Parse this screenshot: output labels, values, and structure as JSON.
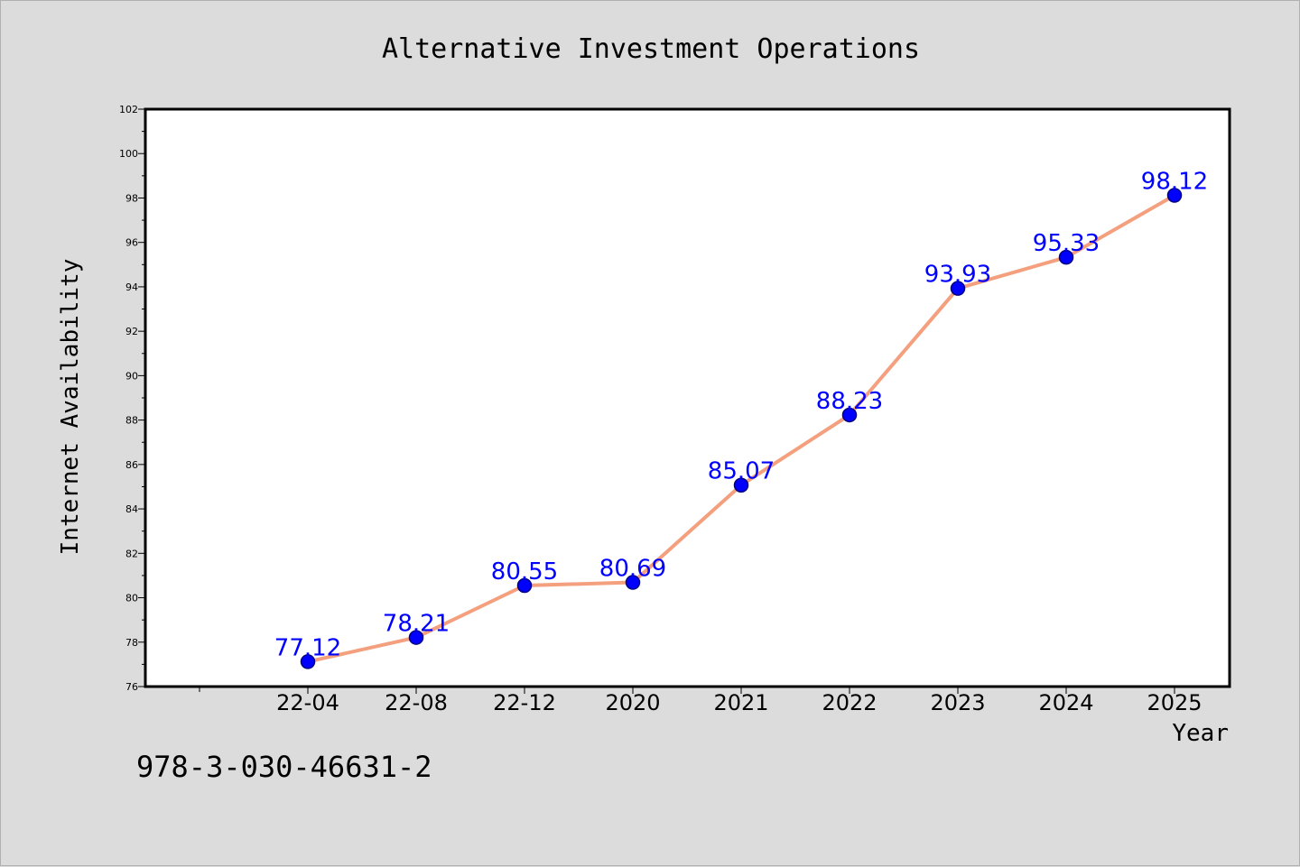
{
  "footer": {
    "code": "978-3-030-46631-2"
  },
  "chart_data": {
    "type": "line",
    "title": "Alternative Investment Operations",
    "xlabel": "Year",
    "ylabel": "Internet Availability",
    "categories": [
      "22-04",
      "22-08",
      "22-12",
      "2020",
      "2021",
      "2022",
      "2023",
      "2024",
      "2025"
    ],
    "values": [
      77.12,
      78.21,
      80.55,
      80.69,
      85.07,
      88.23,
      93.93,
      95.33,
      98.12
    ],
    "data_labels": [
      "77.12",
      "78.21",
      "80.55",
      "80.69",
      "85.07",
      "88.23",
      "93.93",
      "95.33",
      "98.12"
    ],
    "ylim": [
      76,
      102
    ],
    "yticks": [
      76,
      78,
      80,
      82,
      84,
      86,
      88,
      90,
      92,
      94,
      96,
      98,
      100,
      102
    ],
    "grid": false,
    "legend": "none",
    "colors": {
      "line": "#f4a07e",
      "marker": "#0000ff",
      "marker_edge": "#000080",
      "label": "#0000ff"
    }
  }
}
